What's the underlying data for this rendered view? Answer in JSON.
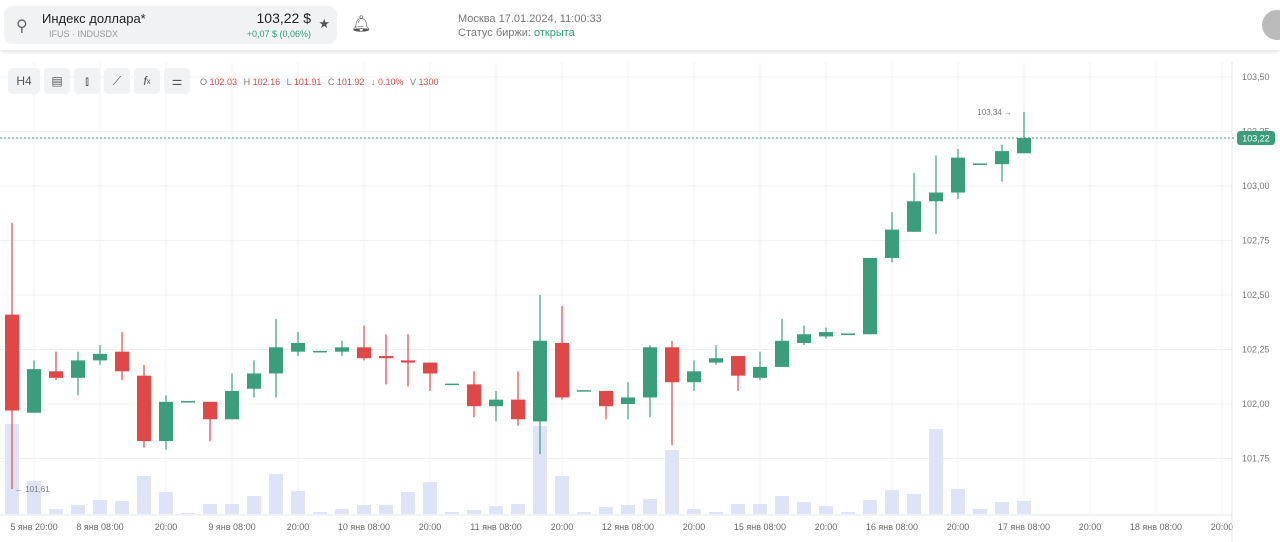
{
  "header": {
    "instrument_name": "Индекс доллара*",
    "instrument_code": "IFUS · INDUSDX",
    "price": "103,22 $",
    "change": "+0,07 $ (0,06%)",
    "location_time": "Москва 17.01.2024, 11:00:33",
    "exchange_status_label": "Статус биржи:",
    "exchange_status_value": "открыта"
  },
  "toolbar": {
    "timeframe": "H4",
    "icons": [
      "template-icon",
      "candles-icon",
      "drawing-icon",
      "indicators-icon",
      "settings-icon"
    ]
  },
  "ohlc": {
    "o_label": "O",
    "o": "102.03",
    "h_label": "H",
    "h": "102.16",
    "l_label": "L",
    "l": "101.91",
    "c_label": "C",
    "c": "101.92",
    "change": "↓ 0.10%",
    "v_label": "V",
    "v": "1300"
  },
  "colors": {
    "up": "#3a9e7c",
    "down": "#e04848",
    "volume": "#dfe3f8",
    "price_line": "#3a9e7c"
  },
  "chart_data": {
    "type": "candlestick",
    "ylim": [
      101.55,
      103.57
    ],
    "y_ticks": [
      "103,50",
      "103,25",
      "103,00",
      "102,75",
      "102,50",
      "102,25",
      "102,00",
      "101,75"
    ],
    "y_tick_values": [
      103.5,
      103.25,
      103.0,
      102.75,
      102.5,
      102.25,
      102.0,
      101.75
    ],
    "x_labels": [
      "5 янв 20:00",
      "8 янв 08:00",
      "20:00",
      "9 янв 08:00",
      "20:00",
      "10 янв 08:00",
      "20:00",
      "11 янв 08:00",
      "20:00",
      "12 янв 08:00",
      "20:00",
      "15 янв 08:00",
      "20:00",
      "16 янв 08:00",
      "20:00",
      "17 янв 08:00",
      "20:00",
      "18 янв 08:00",
      "20:00"
    ],
    "current_price_label": "103,22",
    "current_price": 103.22,
    "max_label": "103,34",
    "min_label": "101,61",
    "candles_ohlcv": [
      [
        102.41,
        102.83,
        101.61,
        101.97,
        90
      ],
      [
        101.96,
        102.2,
        101.96,
        102.16,
        33
      ],
      [
        102.15,
        102.24,
        102.11,
        102.12,
        5
      ],
      [
        102.12,
        102.24,
        102.04,
        102.2,
        9
      ],
      [
        102.2,
        102.27,
        102.18,
        102.23,
        14
      ],
      [
        102.24,
        102.33,
        102.11,
        102.15,
        13
      ],
      [
        102.13,
        102.18,
        101.8,
        101.83,
        38
      ],
      [
        101.83,
        102.04,
        101.79,
        102.01,
        22
      ],
      [
        102.01,
        102.01,
        102.01,
        102.01,
        1
      ],
      [
        102.01,
        102.01,
        101.83,
        101.93,
        10
      ],
      [
        101.93,
        102.14,
        101.93,
        102.06,
        10
      ],
      [
        102.07,
        102.2,
        102.03,
        102.14,
        18
      ],
      [
        102.14,
        102.39,
        102.03,
        102.26,
        40
      ],
      [
        102.24,
        102.33,
        102.22,
        102.28,
        23
      ],
      [
        102.24,
        102.24,
        102.24,
        102.24,
        2
      ],
      [
        102.24,
        102.29,
        102.22,
        102.26,
        5
      ],
      [
        102.26,
        102.36,
        102.2,
        102.21,
        9
      ],
      [
        102.22,
        102.32,
        102.09,
        102.21,
        9
      ],
      [
        102.2,
        102.32,
        102.08,
        102.19,
        22
      ],
      [
        102.19,
        102.19,
        102.06,
        102.14,
        32
      ],
      [
        102.09,
        102.09,
        102.09,
        102.09,
        2
      ],
      [
        102.09,
        102.15,
        101.94,
        101.99,
        4
      ],
      [
        101.99,
        102.06,
        101.92,
        102.02,
        8
      ],
      [
        102.02,
        102.15,
        101.9,
        101.93,
        10
      ],
      [
        101.92,
        102.5,
        101.77,
        102.29,
        88
      ],
      [
        102.28,
        102.45,
        102.02,
        102.03,
        38
      ],
      [
        102.06,
        102.06,
        102.06,
        102.06,
        2
      ],
      [
        102.06,
        102.06,
        101.93,
        101.99,
        7
      ],
      [
        102.0,
        102.1,
        101.93,
        102.03,
        9
      ],
      [
        102.03,
        102.27,
        101.94,
        102.26,
        15
      ],
      [
        102.26,
        102.29,
        101.81,
        102.1,
        64
      ],
      [
        102.1,
        102.2,
        102.06,
        102.15,
        5
      ],
      [
        102.19,
        102.27,
        102.18,
        102.21,
        2
      ],
      [
        102.22,
        102.22,
        102.06,
        102.13,
        10
      ],
      [
        102.12,
        102.24,
        102.11,
        102.17,
        10
      ],
      [
        102.17,
        102.39,
        102.17,
        102.29,
        18
      ],
      [
        102.28,
        102.36,
        102.27,
        102.32,
        12
      ],
      [
        102.31,
        102.35,
        102.3,
        102.33,
        8
      ],
      [
        102.32,
        102.32,
        102.32,
        102.32,
        2
      ],
      [
        102.32,
        102.67,
        102.32,
        102.67,
        14
      ],
      [
        102.67,
        102.88,
        102.65,
        102.8,
        24
      ],
      [
        102.79,
        103.06,
        102.79,
        102.93,
        20
      ],
      [
        102.93,
        103.14,
        102.78,
        102.97,
        85
      ],
      [
        102.97,
        103.17,
        102.94,
        103.13,
        25
      ],
      [
        103.1,
        103.1,
        103.1,
        103.1,
        5
      ],
      [
        103.1,
        103.19,
        103.02,
        103.16,
        12
      ],
      [
        103.15,
        103.34,
        103.15,
        103.22,
        13
      ]
    ]
  }
}
